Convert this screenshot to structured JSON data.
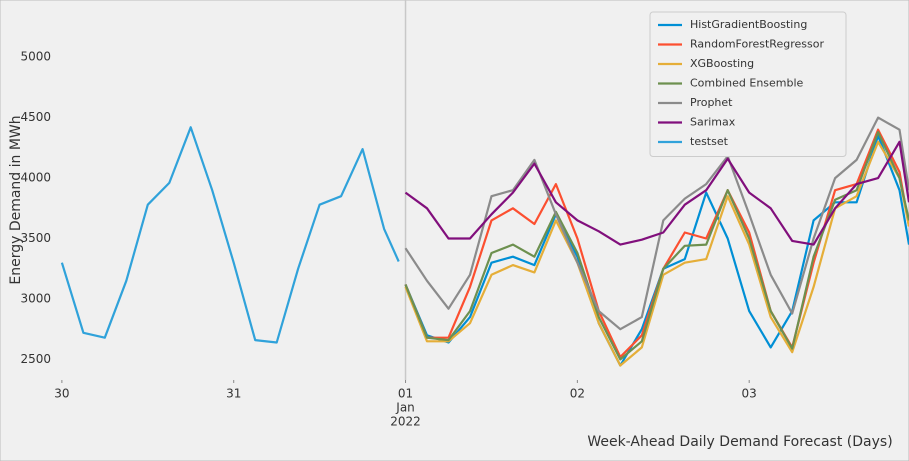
{
  "chart_data": {
    "type": "line",
    "ylabel": "Energy Demand in MWh",
    "xlabel": "Week-Ahead Daily Demand Forecast (Days)",
    "xlim": [
      -0.04,
      4.93
    ],
    "ylim": [
      2330,
      5390
    ],
    "xticks": [
      {
        "value": 0,
        "label": "30"
      },
      {
        "value": 1,
        "label": "31"
      },
      {
        "value": 2,
        "label": "01"
      },
      {
        "value": 3,
        "label": "02"
      },
      {
        "value": 4,
        "label": "03"
      }
    ],
    "x_tick_month": "Jan",
    "x_tick_year": "2022",
    "yticks": [
      2500,
      3000,
      3500,
      4000,
      4500,
      5000
    ],
    "vline_x": 2,
    "grid": false,
    "legend": "upper right",
    "series": [
      {
        "name": "HistGradientBoosting",
        "color": "#008fd5",
        "x": [
          2,
          2.125,
          2.25,
          2.375,
          2.5,
          2.625,
          2.75,
          2.875,
          3,
          3.125,
          3.25,
          3.375,
          3.5,
          3.625,
          3.75,
          3.875,
          4,
          4.125,
          4.25,
          4.375,
          4.5,
          4.625,
          4.75,
          4.875,
          4.93
        ],
        "values": [
          3120,
          2700,
          2640,
          2850,
          3300,
          3350,
          3280,
          3700,
          3350,
          2800,
          2450,
          2750,
          3250,
          3330,
          3880,
          3500,
          2900,
          2600,
          2900,
          3650,
          3800,
          3800,
          4350,
          3900,
          3450
        ]
      },
      {
        "name": "RandomForestRegressor",
        "color": "#fc4f30",
        "x": [
          2,
          2.125,
          2.25,
          2.375,
          2.5,
          2.625,
          2.75,
          2.875,
          3,
          3.125,
          3.25,
          3.375,
          3.5,
          3.625,
          3.75,
          3.875,
          4,
          4.125,
          4.25,
          4.375,
          4.5,
          4.625,
          4.75,
          4.875,
          4.93
        ],
        "values": [
          3120,
          2680,
          2680,
          3100,
          3650,
          3750,
          3620,
          3950,
          3500,
          2900,
          2520,
          2700,
          3250,
          3550,
          3500,
          3900,
          3550,
          2900,
          2600,
          3300,
          3900,
          3950,
          4400,
          4050,
          3600
        ]
      },
      {
        "name": "XGBoosting",
        "color": "#e5ae38",
        "x": [
          2,
          2.125,
          2.25,
          2.375,
          2.5,
          2.625,
          2.75,
          2.875,
          3,
          3.125,
          3.25,
          3.375,
          3.5,
          3.625,
          3.75,
          3.875,
          4,
          4.125,
          4.25,
          4.375,
          4.5,
          4.625,
          4.75,
          4.875,
          4.93
        ],
        "values": [
          3100,
          2650,
          2650,
          2800,
          3200,
          3280,
          3220,
          3650,
          3300,
          2800,
          2450,
          2600,
          3200,
          3300,
          3330,
          3850,
          3450,
          2850,
          2560,
          3100,
          3750,
          3850,
          4300,
          4000,
          3600
        ]
      },
      {
        "name": "Combined Ensemble",
        "color": "#6d904f",
        "x": [
          2,
          2.125,
          2.25,
          2.375,
          2.5,
          2.625,
          2.75,
          2.875,
          3,
          3.125,
          3.25,
          3.375,
          3.5,
          3.625,
          3.75,
          3.875,
          4,
          4.125,
          4.25,
          4.375,
          4.5,
          4.625,
          4.75,
          4.875,
          4.93
        ],
        "values": [
          3120,
          2680,
          2660,
          2900,
          3380,
          3450,
          3350,
          3720,
          3380,
          2850,
          2500,
          2650,
          3250,
          3440,
          3450,
          3900,
          3500,
          2900,
          2590,
          3350,
          3820,
          3900,
          4380,
          4000,
          3650
        ]
      },
      {
        "name": "Prophet",
        "color": "#8b8b8b",
        "x": [
          2,
          2.125,
          2.25,
          2.375,
          2.5,
          2.625,
          2.75,
          2.875,
          3,
          3.125,
          3.25,
          3.375,
          3.5,
          3.625,
          3.75,
          3.875,
          4,
          4.125,
          4.25,
          4.375,
          4.5,
          4.625,
          4.75,
          4.875,
          4.93
        ],
        "values": [
          3420,
          3150,
          2920,
          3200,
          3850,
          3900,
          4150,
          3700,
          3300,
          2900,
          2750,
          2850,
          3650,
          3830,
          3950,
          4180,
          3700,
          3200,
          2880,
          3500,
          4000,
          4150,
          4500,
          4400,
          3900
        ]
      },
      {
        "name": "Sarimax",
        "color": "#810f7c",
        "x": [
          2,
          2.125,
          2.25,
          2.375,
          2.5,
          2.625,
          2.75,
          2.875,
          3,
          3.125,
          3.25,
          3.375,
          3.5,
          3.625,
          3.75,
          3.875,
          4,
          4.125,
          4.25,
          4.375,
          4.5,
          4.625,
          4.75,
          4.875,
          4.93
        ],
        "values": [
          3880,
          3750,
          3500,
          3500,
          3700,
          3880,
          4120,
          3800,
          3650,
          3560,
          3450,
          3490,
          3550,
          3780,
          3900,
          4160,
          3880,
          3750,
          3480,
          3450,
          3750,
          3950,
          4000,
          4300,
          3800
        ]
      },
      {
        "name": "testset",
        "color": "#30a2da",
        "x": [
          0,
          0.125,
          0.25,
          0.375,
          0.5,
          0.625,
          0.75,
          0.875,
          1,
          1.125,
          1.25,
          1.375,
          1.5,
          1.625,
          1.75,
          1.875,
          1.96
        ],
        "values": [
          3300,
          2720,
          2680,
          3150,
          3780,
          3960,
          4420,
          3900,
          3300,
          2660,
          2640,
          3250,
          3780,
          3850,
          4240,
          3580,
          3310
        ]
      }
    ]
  }
}
